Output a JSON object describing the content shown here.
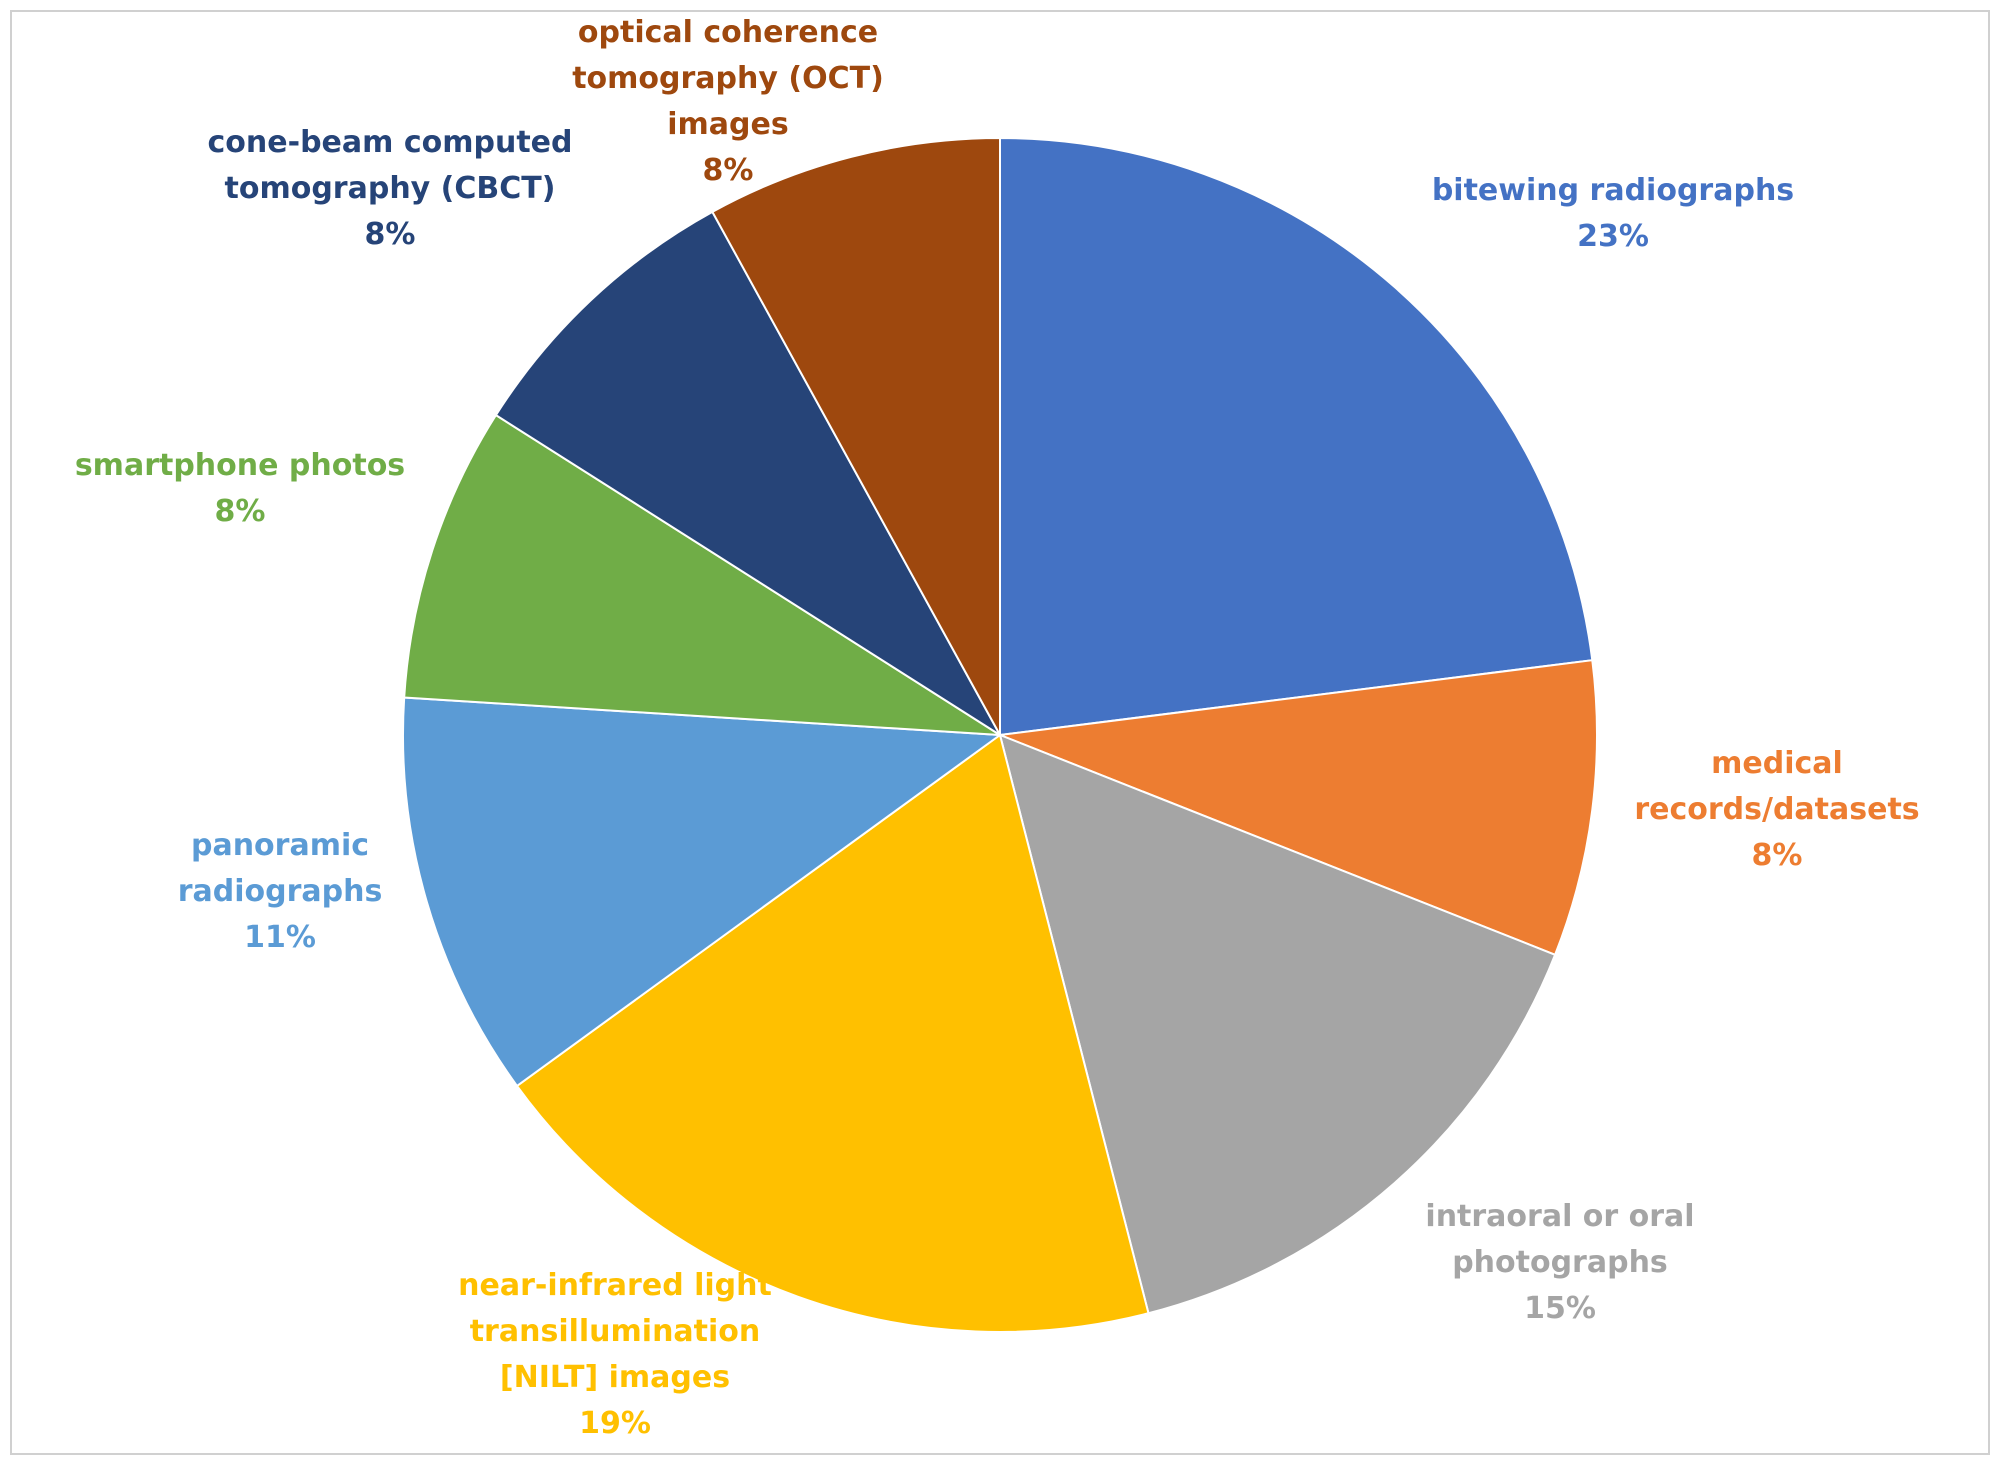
{
  "chart_data": {
    "type": "pie",
    "title": "",
    "series": [
      {
        "values": [
          23,
          8,
          15,
          19,
          11,
          8,
          8,
          8
        ]
      }
    ],
    "slices": [
      {
        "label_lines": [
          "bitewing radiographs"
        ],
        "percent_label": "23%",
        "value": 23,
        "color": "#4472C4"
      },
      {
        "label_lines": [
          "medical",
          "records/datasets"
        ],
        "percent_label": "8%",
        "value": 8,
        "color": "#ED7D31"
      },
      {
        "label_lines": [
          "intraoral or oral",
          "photographs"
        ],
        "percent_label": "15%",
        "value": 15,
        "color": "#A5A5A5"
      },
      {
        "label_lines": [
          "near-infrared light",
          "transillumination",
          "[NILT] images"
        ],
        "percent_label": "19%",
        "value": 19,
        "color": "#FFC000"
      },
      {
        "label_lines": [
          "panoramic",
          "radiographs"
        ],
        "percent_label": "11%",
        "value": 11,
        "color": "#5B9BD5"
      },
      {
        "label_lines": [
          "smartphone photos"
        ],
        "percent_label": "8%",
        "value": 8,
        "color": "#70AD47"
      },
      {
        "label_lines": [
          "cone-beam computed",
          "tomography (CBCT)"
        ],
        "percent_label": "8%",
        "value": 8,
        "color": "#264478"
      },
      {
        "label_lines": [
          "optical coherence",
          "tomography (OCT)",
          "images"
        ],
        "percent_label": "8%",
        "value": 8,
        "color": "#9E480E"
      }
    ],
    "start_angle_deg": 0,
    "direction": "clockwise",
    "legend": "none",
    "data_labels": "outside"
  }
}
